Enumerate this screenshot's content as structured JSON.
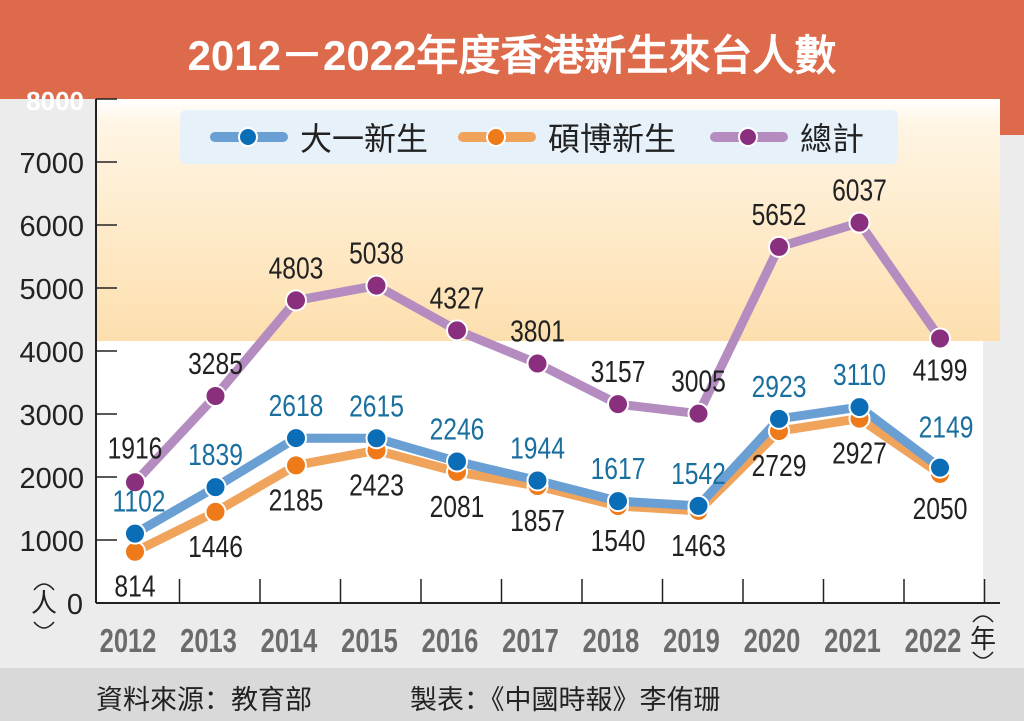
{
  "chart_data": {
    "type": "line",
    "title": "2012－2022年度香港新生來台人數",
    "xlabel": "年",
    "ylabel": "人",
    "ylim": [
      0,
      8000
    ],
    "yticks": [
      "0",
      "1000",
      "2000",
      "3000",
      "4000",
      "5000",
      "6000",
      "7000",
      "8000"
    ],
    "ytick_values": [
      0,
      1000,
      2000,
      3000,
      4000,
      5000,
      6000,
      7000,
      8000
    ],
    "categories": [
      "2012",
      "2013",
      "2014",
      "2015",
      "2016",
      "2017",
      "2018",
      "2019",
      "2020",
      "2021",
      "2022"
    ],
    "legend_position": "top",
    "series": [
      {
        "name": "大一新生",
        "color": "#0b6db5",
        "line_color": "#6a9fd4",
        "label_color": "#1a6f9f",
        "values": [
          1102,
          1839,
          2618,
          2615,
          2246,
          1944,
          1617,
          1542,
          2923,
          3110,
          2149
        ]
      },
      {
        "name": "碩博新生",
        "color": "#ef7a1a",
        "line_color": "#f0a35a",
        "label_color": "#222222",
        "values": [
          814,
          1446,
          2185,
          2423,
          2081,
          1857,
          1540,
          1463,
          2729,
          2927,
          2050
        ]
      },
      {
        "name": "總計",
        "color": "#8a2f7e",
        "line_color": "#b48cc0",
        "label_color": "#222222",
        "values": [
          1916,
          3285,
          4803,
          5038,
          4327,
          3801,
          3157,
          3005,
          5652,
          6037,
          4199
        ]
      }
    ]
  },
  "footer": {
    "source": "資料來源：教育部",
    "credit": "製表：《中國時報》李侑珊"
  }
}
